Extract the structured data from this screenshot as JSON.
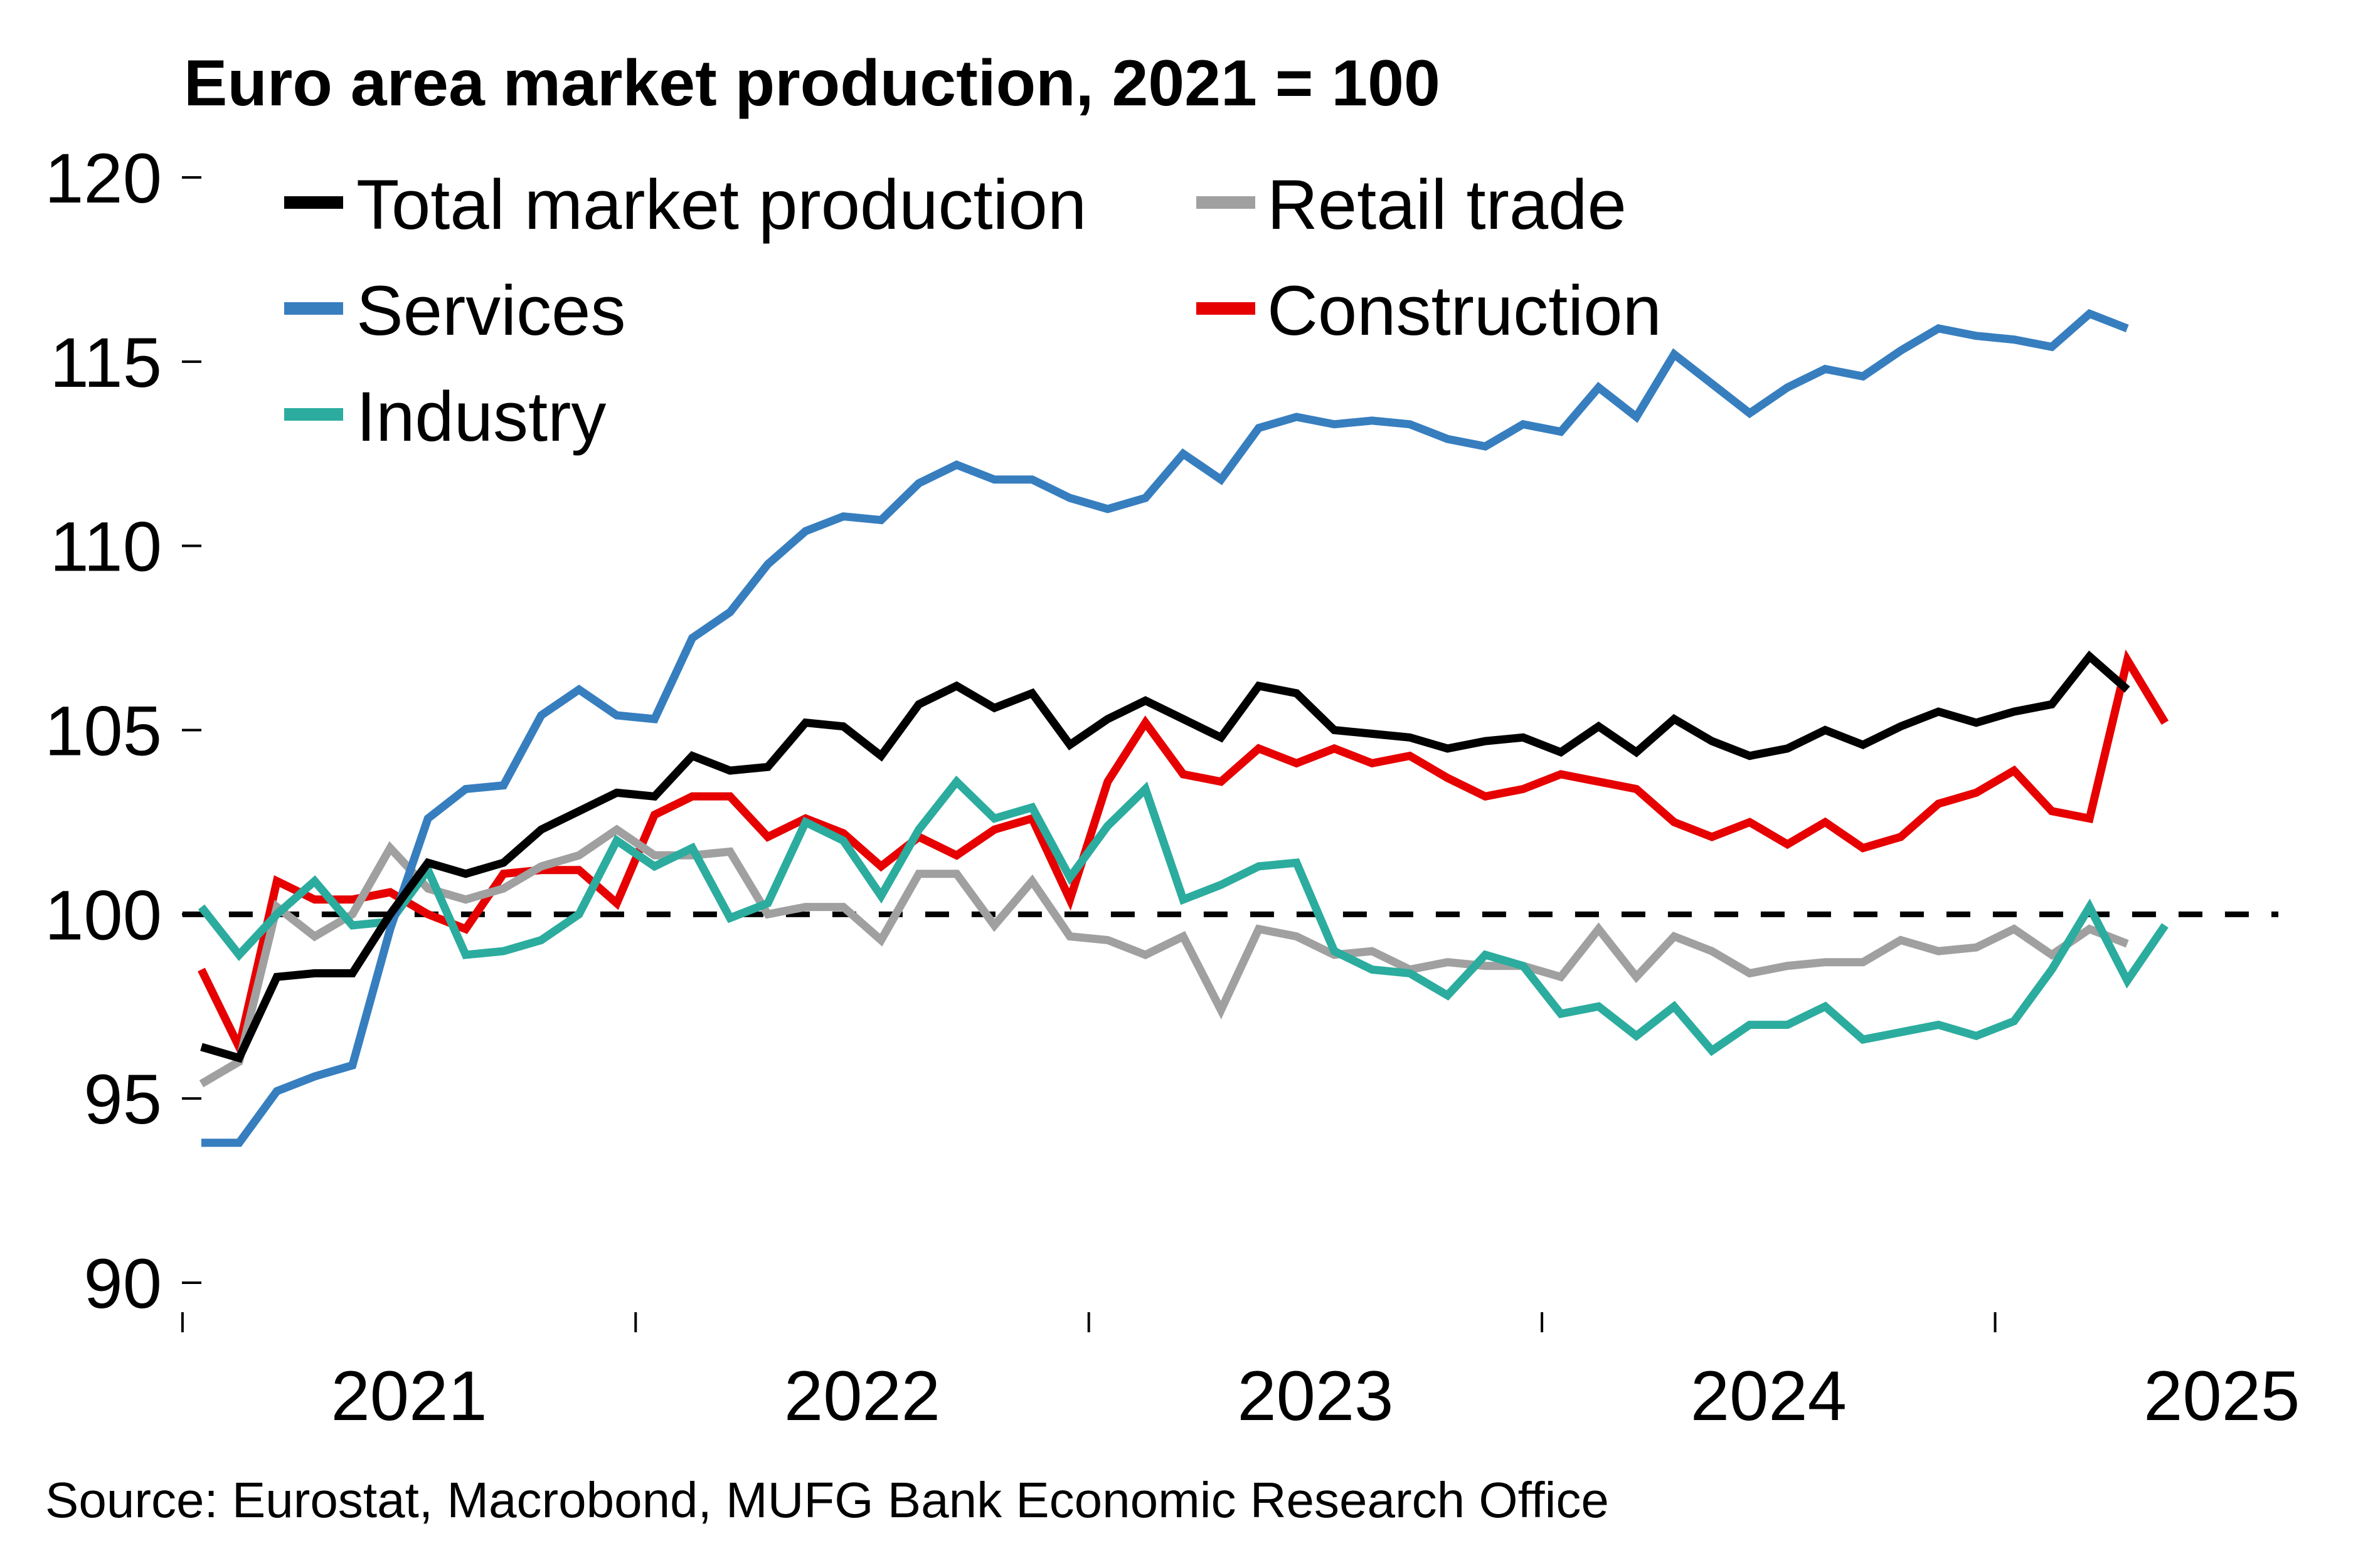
{
  "chart_data": {
    "type": "line",
    "title": "Euro area market production, 2021 = 100",
    "xlabel": "",
    "ylabel": "",
    "frequency": "monthly",
    "x_start": "2021-01",
    "x_tick_labels": [
      "2021",
      "2022",
      "2023",
      "2024",
      "2025"
    ],
    "y_tick_labels": [
      "90",
      "95",
      "100",
      "105",
      "110",
      "115",
      "120"
    ],
    "y_ticks": [
      90,
      95,
      100,
      105,
      110,
      115,
      120
    ],
    "ylim": [
      90,
      120
    ],
    "xlim_months": [
      -0.5,
      55
    ],
    "reference_line": {
      "value": 100,
      "style": "dashed",
      "color": "#000000"
    },
    "grid": false,
    "legend_position": "top-left",
    "series": [
      {
        "name": "Total market production",
        "color": "#000000",
        "values": [
          96.4,
          96.1,
          98.3,
          98.4,
          98.4,
          100.0,
          101.4,
          101.1,
          101.4,
          102.3,
          102.8,
          103.3,
          103.2,
          104.3,
          103.9,
          104.0,
          105.2,
          105.1,
          104.3,
          105.7,
          106.2,
          105.6,
          106.0,
          104.6,
          105.3,
          105.8,
          105.3,
          104.8,
          106.2,
          106.0,
          105.0,
          104.9,
          104.8,
          104.5,
          104.7,
          104.8,
          104.4,
          105.1,
          104.4,
          105.3,
          104.7,
          104.3,
          104.5,
          105.0,
          104.6,
          105.1,
          105.5,
          105.2,
          105.5,
          105.7,
          107.0,
          106.1
        ]
      },
      {
        "name": "Retail trade",
        "color": "#A0A0A0",
        "values": [
          95.4,
          96.0,
          100.2,
          99.4,
          100.0,
          101.8,
          100.7,
          100.4,
          100.7,
          101.3,
          101.6,
          102.3,
          101.6,
          101.6,
          101.7,
          100.0,
          100.2,
          100.2,
          99.3,
          101.1,
          101.1,
          99.7,
          100.9,
          99.4,
          99.3,
          98.9,
          99.4,
          97.4,
          99.6,
          99.4,
          98.9,
          99.0,
          98.5,
          98.7,
          98.6,
          98.6,
          98.3,
          99.6,
          98.3,
          99.4,
          99.0,
          98.4,
          98.6,
          98.7,
          98.7,
          99.3,
          99.0,
          99.1,
          99.6,
          98.9,
          99.6,
          99.2
        ]
      },
      {
        "name": "Services",
        "color": "#377EBF",
        "values": [
          93.8,
          93.8,
          95.2,
          95.6,
          95.9,
          99.6,
          102.6,
          103.4,
          103.5,
          105.4,
          106.1,
          105.4,
          105.3,
          107.5,
          108.2,
          109.5,
          110.4,
          110.8,
          110.7,
          111.7,
          112.2,
          111.8,
          111.8,
          111.3,
          111.0,
          111.3,
          112.5,
          111.8,
          113.2,
          113.5,
          113.3,
          113.4,
          113.3,
          112.9,
          112.7,
          113.3,
          113.1,
          114.3,
          113.5,
          115.2,
          114.4,
          113.6,
          114.3,
          114.8,
          114.6,
          115.3,
          115.9,
          115.7,
          115.6,
          115.4,
          116.3,
          115.9
        ]
      },
      {
        "name": "Construction",
        "color": "#E60000",
        "values": [
          98.5,
          96.4,
          100.9,
          100.4,
          100.4,
          100.6,
          100.0,
          99.6,
          101.1,
          101.2,
          101.2,
          100.3,
          102.7,
          103.2,
          103.2,
          102.1,
          102.6,
          102.2,
          101.3,
          102.1,
          101.6,
          102.3,
          102.6,
          100.4,
          103.6,
          105.2,
          103.8,
          103.6,
          104.5,
          104.1,
          104.5,
          104.1,
          104.3,
          103.7,
          103.2,
          103.4,
          103.8,
          103.6,
          103.4,
          102.5,
          102.1,
          102.5,
          101.9,
          102.5,
          101.8,
          102.1,
          103.0,
          103.3,
          103.9,
          102.8,
          102.6,
          106.9,
          105.2
        ]
      },
      {
        "name": "Industry",
        "color": "#2BAC9E",
        "values": [
          100.2,
          98.9,
          100.0,
          100.9,
          99.7,
          99.8,
          101.2,
          98.9,
          99.0,
          99.3,
          100.0,
          102.0,
          101.3,
          101.8,
          99.9,
          100.3,
          102.5,
          102.0,
          100.5,
          102.3,
          103.6,
          102.6,
          102.9,
          101.0,
          102.4,
          103.4,
          100.4,
          100.8,
          101.3,
          101.4,
          99.0,
          98.5,
          98.4,
          97.8,
          98.9,
          98.6,
          97.3,
          97.5,
          96.7,
          97.5,
          96.3,
          97.0,
          97.0,
          97.5,
          96.6,
          96.8,
          97.0,
          96.7,
          97.1,
          98.5,
          100.2,
          98.2,
          99.7
        ]
      }
    ],
    "legend_layout": [
      [
        "Total market production",
        "Retail trade"
      ],
      [
        "Services",
        "Construction"
      ],
      [
        "Industry"
      ]
    ],
    "source": "Source: Eurostat, Macrobond, MUFG Bank Economic Research Office"
  }
}
